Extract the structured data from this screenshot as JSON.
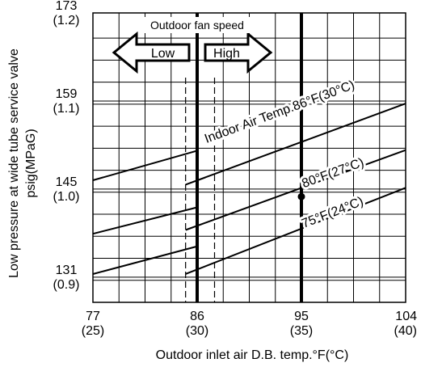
{
  "chart_data": {
    "type": "line",
    "title": "",
    "xlabel": "Outdoor inlet air D.B. temp.°F(°C)",
    "ylabel_lines": [
      "Low pressure at wide tube service valve",
      "psig(MPaG)"
    ],
    "xlim": [
      77,
      104
    ],
    "ylim": [
      127,
      173
    ],
    "x_ticks": [
      {
        "value": 77,
        "label": "77",
        "sublabel": "(25)"
      },
      {
        "value": 86,
        "label": "86",
        "sublabel": "(30)"
      },
      {
        "value": 95,
        "label": "95",
        "sublabel": "(35)"
      },
      {
        "value": 104,
        "label": "104",
        "sublabel": "(40)"
      }
    ],
    "y_ticks": [
      {
        "value": 173,
        "label": "173",
        "sublabel": "(1.2)"
      },
      {
        "value": 159,
        "label": "159",
        "sublabel": "(1.1)"
      },
      {
        "value": 145,
        "label": "145",
        "sublabel": "(1.0)"
      },
      {
        "value": 131,
        "label": "131",
        "sublabel": "(0.9)"
      }
    ],
    "grid": true,
    "grid_x_step": 2.25,
    "grid_y_step": 3.5,
    "fan_speed": {
      "title": "Outdoor fan speed",
      "low_label": "Low",
      "high_label": "High",
      "dashed_lines_x": [
        85,
        87.5
      ]
    },
    "reference_lines_x": [
      86,
      95
    ],
    "series": [
      {
        "name": "Indoor Air Temp.86°F(30°C)",
        "label": "Indoor Air Temp.86°F(30°C)",
        "segments": [
          [
            [
              77,
              146.4
            ],
            [
              86,
              151.1
            ]
          ],
          [
            [
              85,
              145.7
            ],
            [
              104,
              158.6
            ]
          ]
        ]
      },
      {
        "name": "80°F(27°C)",
        "label": "80°F(27°C)",
        "segments": [
          [
            [
              77,
              137.9
            ],
            [
              86,
              142.1
            ]
          ],
          [
            [
              85,
              138.5
            ],
            [
              104,
              151.2
            ]
          ]
        ]
      },
      {
        "name": "75°F(24°C)",
        "label": "75°F(24°C)",
        "segments": [
          [
            [
              77,
              131.5
            ],
            [
              86,
              135.9
            ]
          ],
          [
            [
              85,
              131.5
            ],
            [
              104,
              145.2
            ]
          ]
        ]
      }
    ],
    "marker": {
      "x": 95,
      "y": 143.8
    }
  }
}
